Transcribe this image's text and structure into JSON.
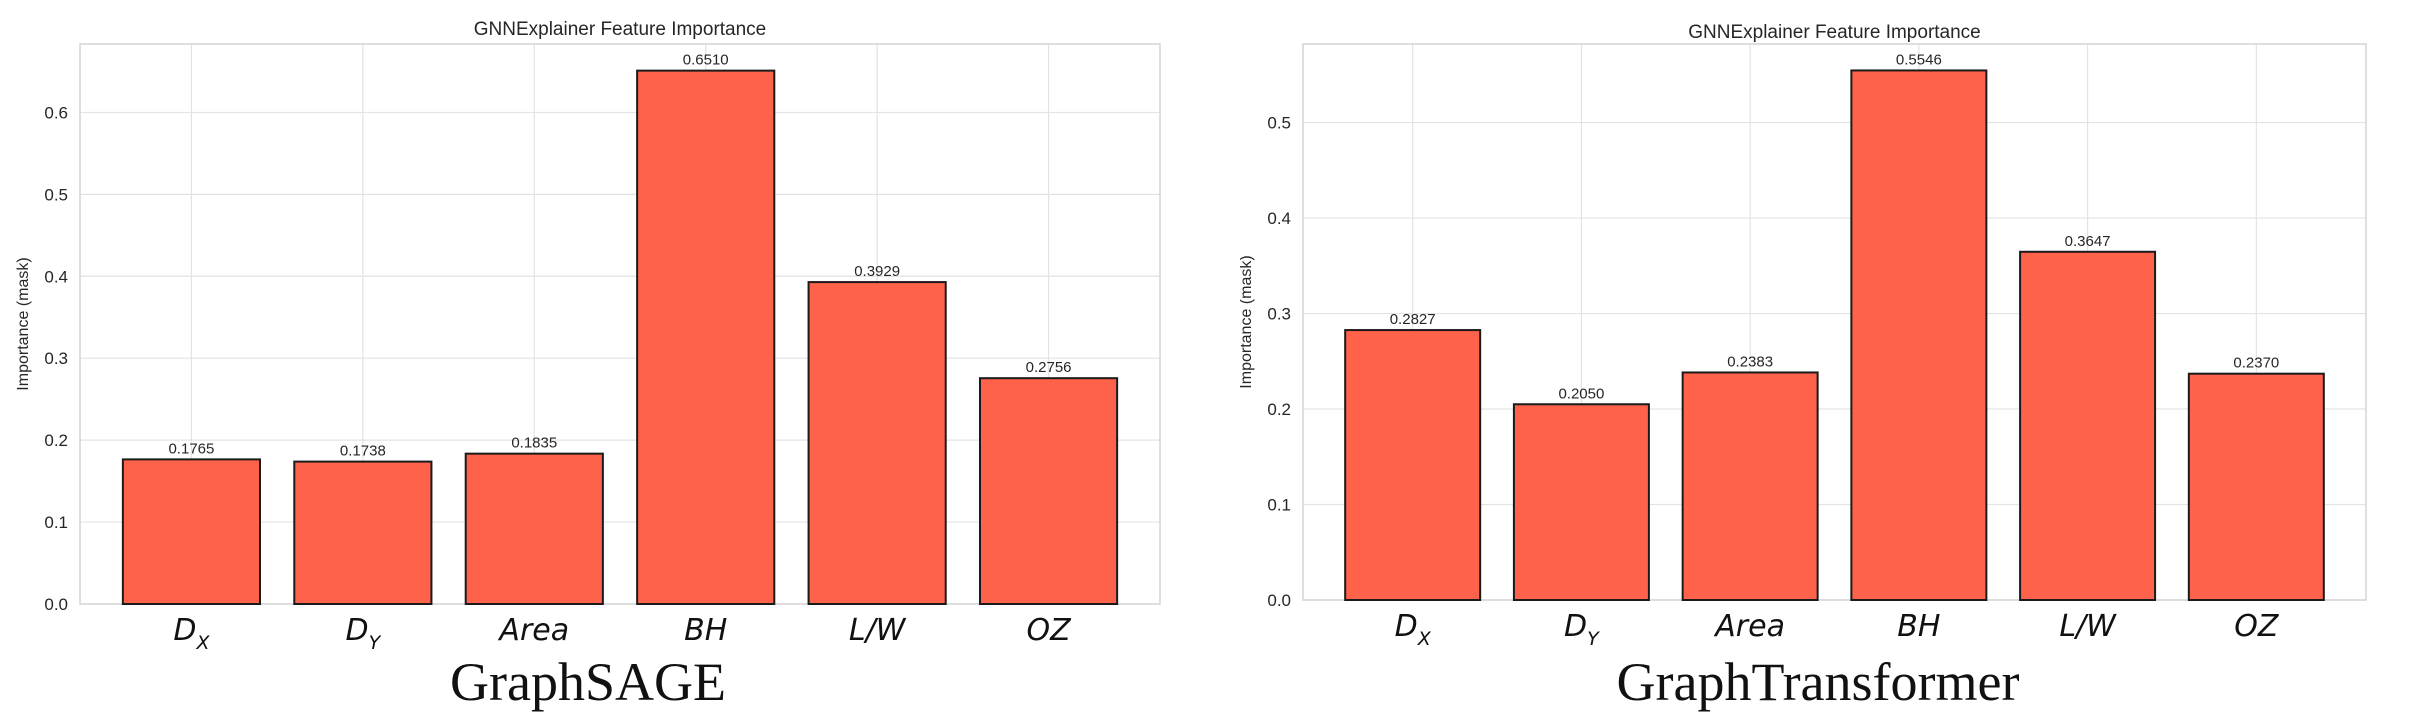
{
  "colors": {
    "bar_fill": "#ff624a",
    "bar_edge": "#1a1a1a",
    "grid": "#e3e3e3",
    "frame": "#d4d4d4"
  },
  "chart_data": [
    {
      "type": "bar",
      "title": "GNNExplainer Feature Importance",
      "ylabel": "Importance (mask)",
      "caption": "GraphSAGE",
      "categories": [
        {
          "main": "D",
          "sub": "X"
        },
        {
          "main": "D",
          "sub": "Y"
        },
        {
          "main": "Area",
          "sub": ""
        },
        {
          "main": "BH",
          "sub": ""
        },
        {
          "main": "L/W",
          "sub": ""
        },
        {
          "main": "OZ",
          "sub": ""
        }
      ],
      "values": [
        0.1765,
        0.1738,
        0.1835,
        0.651,
        0.3929,
        0.2756
      ],
      "value_labels": [
        "0.1765",
        "0.1738",
        "0.1835",
        "0.6510",
        "0.3929",
        "0.2756"
      ],
      "ylim": [
        0,
        0.6835
      ],
      "yticks": [
        0.0,
        0.1,
        0.2,
        0.3,
        0.4,
        0.5,
        0.6
      ],
      "ytick_labels": [
        "0.0",
        "0.1",
        "0.2",
        "0.3",
        "0.4",
        "0.5",
        "0.6"
      ],
      "grid": true
    },
    {
      "type": "bar",
      "title": "GNNExplainer Feature Importance",
      "ylabel": "Importance (mask)",
      "caption": "GraphTransformer",
      "categories": [
        {
          "main": "D",
          "sub": "X"
        },
        {
          "main": "D",
          "sub": "Y"
        },
        {
          "main": "Area",
          "sub": ""
        },
        {
          "main": "BH",
          "sub": ""
        },
        {
          "main": "L/W",
          "sub": ""
        },
        {
          "main": "OZ",
          "sub": ""
        }
      ],
      "values": [
        0.2827,
        0.205,
        0.2383,
        0.5546,
        0.3647,
        0.237
      ],
      "value_labels": [
        "0.2827",
        "0.2050",
        "0.2383",
        "0.5546",
        "0.3647",
        "0.2370"
      ],
      "ylim": [
        0,
        0.5823
      ],
      "yticks": [
        0.0,
        0.1,
        0.2,
        0.3,
        0.4,
        0.5
      ],
      "ytick_labels": [
        "0.0",
        "0.1",
        "0.2",
        "0.3",
        "0.4",
        "0.5"
      ],
      "grid": true
    }
  ]
}
